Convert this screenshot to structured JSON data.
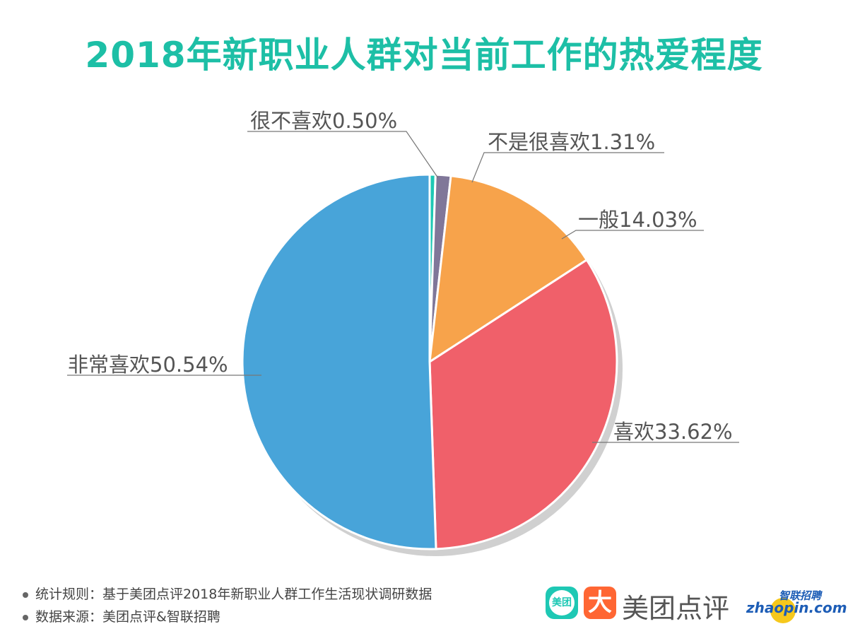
{
  "title": "2018年新职业人群对当前工作的热爱程度",
  "chart_data": {
    "type": "pie",
    "title": "2018年新职业人群对当前工作的热爱程度",
    "start_angle": "top",
    "direction": "clockwise",
    "slices": [
      {
        "name": "很不喜欢",
        "value": 0.5,
        "label": "很不喜欢0.50%",
        "color": "#1ec8b4"
      },
      {
        "name": "不是很喜欢",
        "value": 1.31,
        "label": "不是很喜欢1.31%",
        "color": "#807799"
      },
      {
        "name": "一般",
        "value": 14.03,
        "label": "一般14.03%",
        "color": "#f7a34b"
      },
      {
        "name": "喜欢",
        "value": 33.62,
        "label": "喜欢33.62%",
        "color": "#f0606a"
      },
      {
        "name": "非常喜欢",
        "value": 50.54,
        "label": "非常喜欢50.54%",
        "color": "#48a4d9"
      }
    ]
  },
  "footer": {
    "rule": "统计规则：基于美团点评2018年新职业人群工作生活现状调研数据",
    "source": "数据来源：美团点评&智联招聘"
  },
  "logos": {
    "meituan_badge": "美团",
    "dianping_glyph": "大",
    "meituan_dianping": "美团点评",
    "zhaopin_cn": "智联招聘",
    "zhaopin_en": "zhaopin.com"
  }
}
